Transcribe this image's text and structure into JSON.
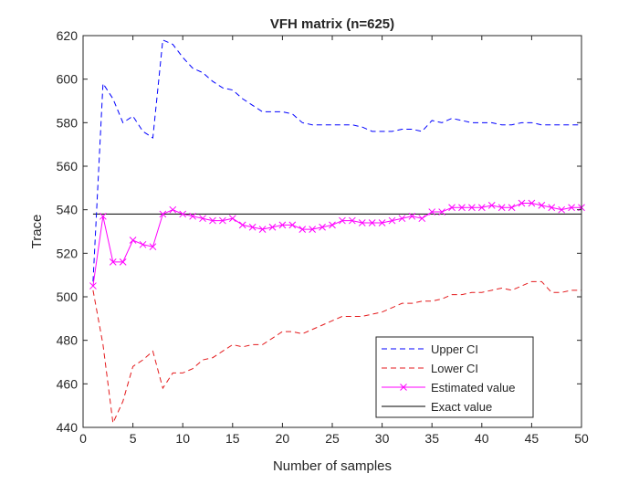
{
  "chart_data": {
    "type": "line",
    "title": "VFH matrix (n=625)",
    "xlabel": "Number of samples",
    "ylabel": "Trace",
    "xlim": [
      0,
      50
    ],
    "ylim": [
      440,
      620
    ],
    "xticks": [
      0,
      5,
      10,
      15,
      20,
      25,
      30,
      35,
      40,
      45,
      50
    ],
    "yticks": [
      440,
      460,
      480,
      500,
      520,
      540,
      560,
      580,
      600,
      620
    ],
    "grid": false,
    "legend_position": "bottom-right",
    "x": [
      1,
      2,
      3,
      4,
      5,
      6,
      7,
      8,
      9,
      10,
      11,
      12,
      13,
      14,
      15,
      16,
      17,
      18,
      19,
      20,
      21,
      22,
      23,
      24,
      25,
      26,
      27,
      28,
      29,
      30,
      31,
      32,
      33,
      34,
      35,
      36,
      37,
      38,
      39,
      40,
      41,
      42,
      43,
      44,
      45,
      46,
      47,
      48,
      49,
      50
    ],
    "series": [
      {
        "name": "Upper CI",
        "color": "#0000ff",
        "style": "dashed",
        "marker": "none",
        "values": [
          507,
          598,
          591,
          580,
          583,
          576,
          573,
          618,
          616,
          610,
          605,
          603,
          599,
          596,
          595,
          591,
          588,
          585,
          585,
          585,
          584,
          580,
          579,
          579,
          579,
          579,
          579,
          578,
          576,
          576,
          576,
          577,
          577,
          576,
          581,
          580,
          582,
          581,
          580,
          580,
          580,
          579,
          579,
          580,
          580,
          579,
          579,
          579,
          579,
          579
        ]
      },
      {
        "name": "Lower CI",
        "color": "#e41a1c",
        "style": "dashed",
        "marker": "none",
        "values": [
          503,
          478,
          442,
          452,
          468,
          471,
          475,
          458,
          465,
          465,
          467,
          471,
          472,
          475,
          478,
          477,
          478,
          478,
          481,
          484,
          484,
          483,
          485,
          487,
          489,
          491,
          491,
          491,
          492,
          493,
          495,
          497,
          497,
          498,
          498,
          499,
          501,
          501,
          502,
          502,
          503,
          504,
          503,
          505,
          507,
          507,
          502,
          502,
          503,
          503
        ]
      },
      {
        "name": "Estimated value",
        "color": "#ff00ff",
        "style": "solid",
        "marker": "x",
        "values": [
          505,
          537,
          516,
          516,
          526,
          524,
          523,
          538,
          540,
          538,
          537,
          536,
          535,
          535,
          536,
          533,
          532,
          531,
          532,
          533,
          533,
          531,
          531,
          532,
          533,
          535,
          535,
          534,
          534,
          534,
          535,
          536,
          537,
          536,
          539,
          539,
          541,
          541,
          541,
          541,
          542,
          541,
          541,
          543,
          543,
          542,
          541,
          540,
          541,
          541
        ]
      },
      {
        "name": "Exact value",
        "color": "#000000",
        "style": "solid",
        "marker": "none",
        "values": [
          538,
          538,
          538,
          538,
          538,
          538,
          538,
          538,
          538,
          538,
          538,
          538,
          538,
          538,
          538,
          538,
          538,
          538,
          538,
          538,
          538,
          538,
          538,
          538,
          538,
          538,
          538,
          538,
          538,
          538,
          538,
          538,
          538,
          538,
          538,
          538,
          538,
          538,
          538,
          538,
          538,
          538,
          538,
          538,
          538,
          538,
          538,
          538,
          538,
          538
        ]
      }
    ]
  }
}
